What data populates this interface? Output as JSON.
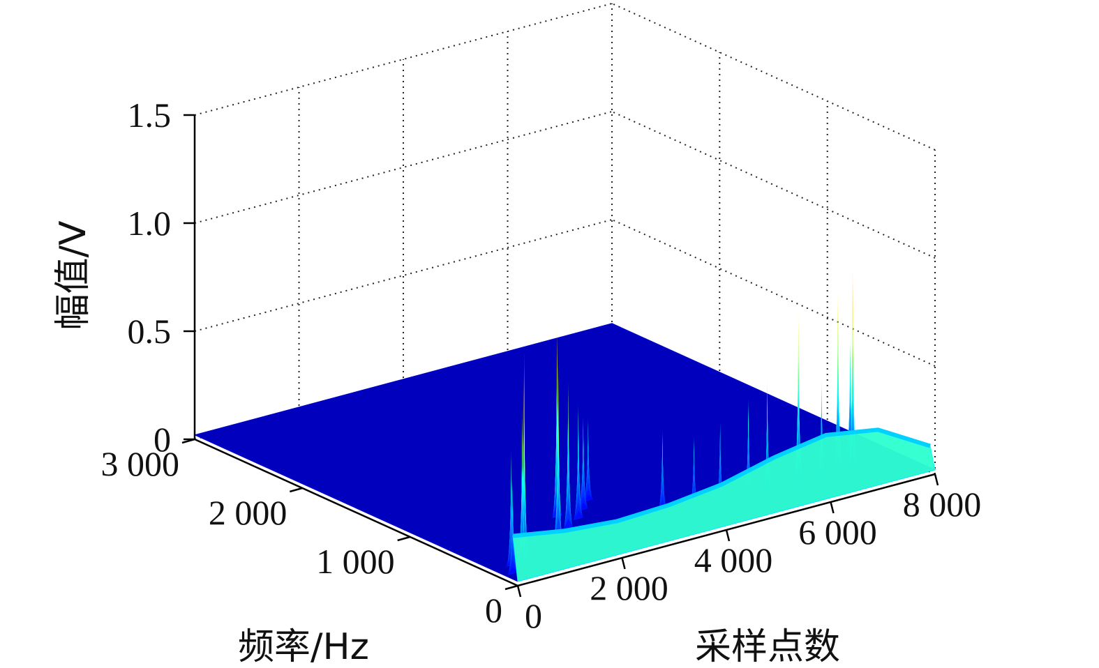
{
  "chart_data": {
    "type": "surface3d",
    "title": "",
    "xlabel": "采样点数",
    "ylabel": "频率/Hz",
    "zlabel": "幅值/V",
    "xlim": [
      0,
      8000
    ],
    "ylim": [
      0,
      3000
    ],
    "zlim": [
      0,
      1.5
    ],
    "x_ticks": [
      0,
      2000,
      4000,
      6000,
      8000
    ],
    "y_ticks": [
      0,
      1000,
      2000,
      3000
    ],
    "z_ticks": [
      0,
      0.5,
      1.0,
      1.5
    ],
    "x_tick_labels": [
      "0",
      "2 000",
      "4 000",
      "6 000",
      "8 000"
    ],
    "y_tick_labels": [
      "0",
      "1 000",
      "2 000",
      "3 000"
    ],
    "z_tick_labels": [
      "0",
      "0.5",
      "1.0",
      "1.5"
    ],
    "grid": true,
    "colormap": "jet",
    "low_frequency_band": {
      "frequency_range_hz": [
        0,
        150
      ],
      "x": [
        0,
        1000,
        2000,
        3000,
        4000,
        5000,
        6000,
        7000,
        8000
      ],
      "amplitude": [
        0.22,
        0.18,
        0.16,
        0.17,
        0.2,
        0.26,
        0.3,
        0.26,
        0.12
      ]
    },
    "spectral_peaks": [
      {
        "x": 150,
        "frequency_hz": 120,
        "amplitude": 0.45
      },
      {
        "x": 350,
        "frequency_hz": 230,
        "amplitude": 0.55
      },
      {
        "x": 500,
        "frequency_hz": 200,
        "amplitude": 0.75
      },
      {
        "x": 700,
        "frequency_hz": 280,
        "amplitude": 0.98
      },
      {
        "x": 1500,
        "frequency_hz": 350,
        "amplitude": 0.85
      },
      {
        "x": 1700,
        "frequency_hz": 450,
        "amplitude": 0.55
      },
      {
        "x": 2000,
        "frequency_hz": 500,
        "amplitude": 0.7
      },
      {
        "x": 2200,
        "frequency_hz": 700,
        "amplitude": 0.9
      },
      {
        "x": 2400,
        "frequency_hz": 600,
        "amplitude": 0.55
      },
      {
        "x": 2700,
        "frequency_hz": 700,
        "amplitude": 0.45
      },
      {
        "x": 3000,
        "frequency_hz": 800,
        "amplitude": 0.4
      },
      {
        "x": 3600,
        "frequency_hz": 400,
        "amplitude": 0.4
      },
      {
        "x": 4100,
        "frequency_hz": 350,
        "amplitude": 0.35
      },
      {
        "x": 4500,
        "frequency_hz": 300,
        "amplitude": 0.4
      },
      {
        "x": 5000,
        "frequency_hz": 280,
        "amplitude": 0.48
      },
      {
        "x": 5300,
        "frequency_hz": 250,
        "amplitude": 0.55
      },
      {
        "x": 6000,
        "frequency_hz": 300,
        "amplitude": 0.8
      },
      {
        "x": 6300,
        "frequency_hz": 230,
        "amplitude": 0.5
      },
      {
        "x": 6800,
        "frequency_hz": 320,
        "amplitude": 0.85
      },
      {
        "x": 7000,
        "frequency_hz": 280,
        "amplitude": 0.95
      },
      {
        "x": 7200,
        "frequency_hz": 400,
        "amplitude": 0.6
      }
    ],
    "background_amplitude": 0.02
  }
}
